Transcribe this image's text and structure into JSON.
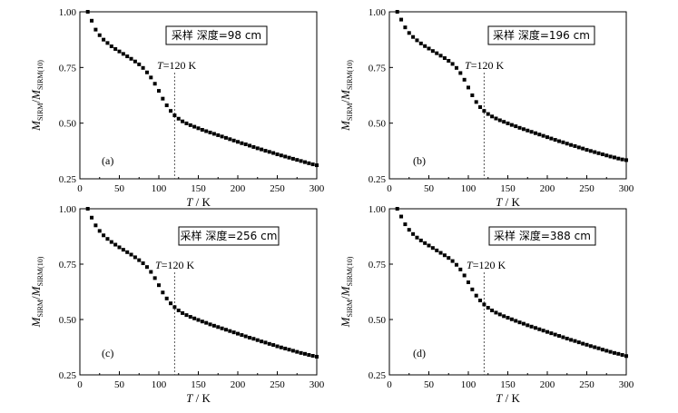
{
  "chart_data": [
    {
      "type": "scatter",
      "panel_label": "(a)",
      "depth_label": "采样 深度=98 cm",
      "t_line_label": "=120 K",
      "t_line_value": 120,
      "x_label": "/ K",
      "x_label_var": "T",
      "y_label_var_main": "M",
      "y_label_sub_main": "SIRM",
      "y_label_sep": "/",
      "y_label_var_ref": "M",
      "y_label_sub_ref": "SIRM(10)",
      "xlim": [
        0,
        300
      ],
      "ylim": [
        0.25,
        1.0
      ],
      "x_ticks": [
        0,
        50,
        100,
        150,
        200,
        250,
        300
      ],
      "y_ticks": [
        0.25,
        0.5,
        0.75,
        1.0
      ],
      "x_tick_labels": [
        "0",
        "50",
        "100",
        "150",
        "200",
        "250",
        "300"
      ],
      "y_tick_labels": [
        "0.25",
        "0.50",
        "0.75",
        "1.00"
      ],
      "points": [
        [
          10,
          1.0
        ],
        [
          15,
          0.96
        ],
        [
          20,
          0.92
        ],
        [
          25,
          0.895
        ],
        [
          30,
          0.875
        ],
        [
          35,
          0.86
        ],
        [
          40,
          0.845
        ],
        [
          45,
          0.833
        ],
        [
          50,
          0.822
        ],
        [
          55,
          0.811
        ],
        [
          60,
          0.8
        ],
        [
          65,
          0.789
        ],
        [
          70,
          0.777
        ],
        [
          75,
          0.764
        ],
        [
          80,
          0.748
        ],
        [
          85,
          0.728
        ],
        [
          90,
          0.705
        ],
        [
          95,
          0.677
        ],
        [
          100,
          0.645
        ],
        [
          105,
          0.61
        ],
        [
          110,
          0.58
        ],
        [
          115,
          0.555
        ],
        [
          120,
          0.535
        ],
        [
          125,
          0.52
        ],
        [
          130,
          0.508
        ],
        [
          135,
          0.499
        ],
        [
          140,
          0.491
        ],
        [
          145,
          0.484
        ],
        [
          150,
          0.477
        ],
        [
          155,
          0.47
        ],
        [
          160,
          0.464
        ],
        [
          165,
          0.458
        ],
        [
          170,
          0.452
        ],
        [
          175,
          0.446
        ],
        [
          180,
          0.44
        ],
        [
          185,
          0.434
        ],
        [
          190,
          0.428
        ],
        [
          195,
          0.422
        ],
        [
          200,
          0.416
        ],
        [
          205,
          0.41
        ],
        [
          210,
          0.405
        ],
        [
          215,
          0.399
        ],
        [
          220,
          0.393
        ],
        [
          225,
          0.387
        ],
        [
          230,
          0.382
        ],
        [
          235,
          0.376
        ],
        [
          240,
          0.371
        ],
        [
          245,
          0.366
        ],
        [
          250,
          0.36
        ],
        [
          255,
          0.355
        ],
        [
          260,
          0.35
        ],
        [
          265,
          0.345
        ],
        [
          270,
          0.34
        ],
        [
          275,
          0.335
        ],
        [
          280,
          0.33
        ],
        [
          285,
          0.325
        ],
        [
          290,
          0.32
        ],
        [
          295,
          0.315
        ],
        [
          300,
          0.311
        ]
      ]
    },
    {
      "type": "scatter",
      "panel_label": "(b)",
      "depth_label": "采样 深度=196 cm",
      "t_line_label": "=120 K",
      "t_line_value": 120,
      "x_label": "/ K",
      "x_label_var": "T",
      "y_label_var_main": "M",
      "y_label_sub_main": "SIRM",
      "y_label_sep": "/",
      "y_label_var_ref": "M",
      "y_label_sub_ref": "SIRM(10)",
      "xlim": [
        0,
        300
      ],
      "ylim": [
        0.25,
        1.0
      ],
      "x_ticks": [
        0,
        50,
        100,
        150,
        200,
        250,
        300
      ],
      "y_ticks": [
        0.25,
        0.5,
        0.75,
        1.0
      ],
      "x_tick_labels": [
        "0",
        "50",
        "100",
        "150",
        "200",
        "250",
        "300"
      ],
      "y_tick_labels": [
        "0.25",
        "0.50",
        "0.75",
        "1.00"
      ],
      "points": [
        [
          10,
          1.0
        ],
        [
          15,
          0.965
        ],
        [
          20,
          0.93
        ],
        [
          25,
          0.905
        ],
        [
          30,
          0.887
        ],
        [
          35,
          0.872
        ],
        [
          40,
          0.858
        ],
        [
          45,
          0.846
        ],
        [
          50,
          0.835
        ],
        [
          55,
          0.824
        ],
        [
          60,
          0.814
        ],
        [
          65,
          0.803
        ],
        [
          70,
          0.792
        ],
        [
          75,
          0.78
        ],
        [
          80,
          0.766
        ],
        [
          85,
          0.748
        ],
        [
          90,
          0.725
        ],
        [
          95,
          0.695
        ],
        [
          100,
          0.66
        ],
        [
          105,
          0.625
        ],
        [
          110,
          0.595
        ],
        [
          115,
          0.572
        ],
        [
          120,
          0.555
        ],
        [
          125,
          0.541
        ],
        [
          130,
          0.53
        ],
        [
          135,
          0.521
        ],
        [
          140,
          0.513
        ],
        [
          145,
          0.506
        ],
        [
          150,
          0.499
        ],
        [
          155,
          0.492
        ],
        [
          160,
          0.486
        ],
        [
          165,
          0.479
        ],
        [
          170,
          0.473
        ],
        [
          175,
          0.467
        ],
        [
          180,
          0.461
        ],
        [
          185,
          0.455
        ],
        [
          190,
          0.449
        ],
        [
          195,
          0.443
        ],
        [
          200,
          0.437
        ],
        [
          205,
          0.431
        ],
        [
          210,
          0.425
        ],
        [
          215,
          0.419
        ],
        [
          220,
          0.414
        ],
        [
          225,
          0.408
        ],
        [
          230,
          0.402
        ],
        [
          235,
          0.397
        ],
        [
          240,
          0.391
        ],
        [
          245,
          0.386
        ],
        [
          250,
          0.38
        ],
        [
          255,
          0.375
        ],
        [
          260,
          0.37
        ],
        [
          265,
          0.365
        ],
        [
          270,
          0.36
        ],
        [
          275,
          0.355
        ],
        [
          280,
          0.35
        ],
        [
          285,
          0.346
        ],
        [
          290,
          0.341
        ],
        [
          295,
          0.337
        ],
        [
          300,
          0.334
        ]
      ]
    },
    {
      "type": "scatter",
      "panel_label": "(c)",
      "depth_label": "采样 深度=256 cm",
      "t_line_label": "=120 K",
      "t_line_value": 120,
      "x_label": "/ K",
      "x_label_var": "T",
      "y_label_var_main": "M",
      "y_label_sub_main": "SIRM",
      "y_label_sep": "/",
      "y_label_var_ref": "M",
      "y_label_sub_ref": "SIRM(10)",
      "xlim": [
        0,
        300
      ],
      "ylim": [
        0.25,
        1.0
      ],
      "x_ticks": [
        0,
        50,
        100,
        150,
        200,
        250,
        300
      ],
      "y_ticks": [
        0.25,
        0.5,
        0.75,
        1.0
      ],
      "x_tick_labels": [
        "0",
        "50",
        "100",
        "150",
        "200",
        "250",
        "300"
      ],
      "y_tick_labels": [
        "0.25",
        "0.50",
        "0.75",
        "1.00"
      ],
      "points": [
        [
          10,
          1.0
        ],
        [
          15,
          0.96
        ],
        [
          20,
          0.925
        ],
        [
          25,
          0.9
        ],
        [
          30,
          0.88
        ],
        [
          35,
          0.864
        ],
        [
          40,
          0.85
        ],
        [
          45,
          0.838
        ],
        [
          50,
          0.826
        ],
        [
          55,
          0.815
        ],
        [
          60,
          0.804
        ],
        [
          65,
          0.793
        ],
        [
          70,
          0.781
        ],
        [
          75,
          0.768
        ],
        [
          80,
          0.754
        ],
        [
          85,
          0.737
        ],
        [
          90,
          0.715
        ],
        [
          95,
          0.687
        ],
        [
          100,
          0.655
        ],
        [
          105,
          0.622
        ],
        [
          110,
          0.595
        ],
        [
          115,
          0.573
        ],
        [
          120,
          0.556
        ],
        [
          125,
          0.541
        ],
        [
          130,
          0.529
        ],
        [
          135,
          0.52
        ],
        [
          140,
          0.512
        ],
        [
          145,
          0.505
        ],
        [
          150,
          0.498
        ],
        [
          155,
          0.491
        ],
        [
          160,
          0.485
        ],
        [
          165,
          0.478
        ],
        [
          170,
          0.472
        ],
        [
          175,
          0.466
        ],
        [
          180,
          0.46
        ],
        [
          185,
          0.454
        ],
        [
          190,
          0.448
        ],
        [
          195,
          0.442
        ],
        [
          200,
          0.436
        ],
        [
          205,
          0.43
        ],
        [
          210,
          0.424
        ],
        [
          215,
          0.418
        ],
        [
          220,
          0.413
        ],
        [
          225,
          0.407
        ],
        [
          230,
          0.401
        ],
        [
          235,
          0.396
        ],
        [
          240,
          0.39
        ],
        [
          245,
          0.385
        ],
        [
          250,
          0.379
        ],
        [
          255,
          0.374
        ],
        [
          260,
          0.369
        ],
        [
          265,
          0.364
        ],
        [
          270,
          0.359
        ],
        [
          275,
          0.354
        ],
        [
          280,
          0.349
        ],
        [
          285,
          0.345
        ],
        [
          290,
          0.34
        ],
        [
          295,
          0.336
        ],
        [
          300,
          0.332
        ]
      ]
    },
    {
      "type": "scatter",
      "panel_label": "(d)",
      "depth_label": "采样 深度=388 cm",
      "t_line_label": "=120 K",
      "t_line_value": 120,
      "x_label": "/ K",
      "x_label_var": "T",
      "y_label_var_main": "M",
      "y_label_sub_main": "SIRM",
      "y_label_sep": "/",
      "y_label_var_ref": "M",
      "y_label_sub_ref": "SIRM(10)",
      "xlim": [
        0,
        300
      ],
      "ylim": [
        0.25,
        1.0
      ],
      "x_ticks": [
        0,
        50,
        100,
        150,
        200,
        250,
        300
      ],
      "y_ticks": [
        0.25,
        0.5,
        0.75,
        1.0
      ],
      "x_tick_labels": [
        "0",
        "50",
        "100",
        "150",
        "200",
        "250",
        "300"
      ],
      "y_tick_labels": [
        "0.25",
        "0.50",
        "0.75",
        "1.00"
      ],
      "points": [
        [
          10,
          1.0
        ],
        [
          15,
          0.965
        ],
        [
          20,
          0.93
        ],
        [
          25,
          0.905
        ],
        [
          30,
          0.886
        ],
        [
          35,
          0.87
        ],
        [
          40,
          0.857
        ],
        [
          45,
          0.845
        ],
        [
          50,
          0.834
        ],
        [
          55,
          0.823
        ],
        [
          60,
          0.812
        ],
        [
          65,
          0.801
        ],
        [
          70,
          0.79
        ],
        [
          75,
          0.778
        ],
        [
          80,
          0.764
        ],
        [
          85,
          0.747
        ],
        [
          90,
          0.726
        ],
        [
          95,
          0.699
        ],
        [
          100,
          0.668
        ],
        [
          105,
          0.636
        ],
        [
          110,
          0.608
        ],
        [
          115,
          0.586
        ],
        [
          120,
          0.568
        ],
        [
          125,
          0.553
        ],
        [
          130,
          0.541
        ],
        [
          135,
          0.531
        ],
        [
          140,
          0.523
        ],
        [
          145,
          0.515
        ],
        [
          150,
          0.508
        ],
        [
          155,
          0.501
        ],
        [
          160,
          0.494
        ],
        [
          165,
          0.487
        ],
        [
          170,
          0.481
        ],
        [
          175,
          0.474
        ],
        [
          180,
          0.468
        ],
        [
          185,
          0.462
        ],
        [
          190,
          0.456
        ],
        [
          195,
          0.45
        ],
        [
          200,
          0.444
        ],
        [
          205,
          0.438
        ],
        [
          210,
          0.432
        ],
        [
          215,
          0.426
        ],
        [
          220,
          0.42
        ],
        [
          225,
          0.414
        ],
        [
          230,
          0.408
        ],
        [
          235,
          0.403
        ],
        [
          240,
          0.397
        ],
        [
          245,
          0.391
        ],
        [
          250,
          0.386
        ],
        [
          255,
          0.38
        ],
        [
          260,
          0.375
        ],
        [
          265,
          0.37
        ],
        [
          270,
          0.364
        ],
        [
          275,
          0.359
        ],
        [
          280,
          0.354
        ],
        [
          285,
          0.349
        ],
        [
          290,
          0.345
        ],
        [
          295,
          0.34
        ],
        [
          300,
          0.335
        ]
      ]
    }
  ]
}
